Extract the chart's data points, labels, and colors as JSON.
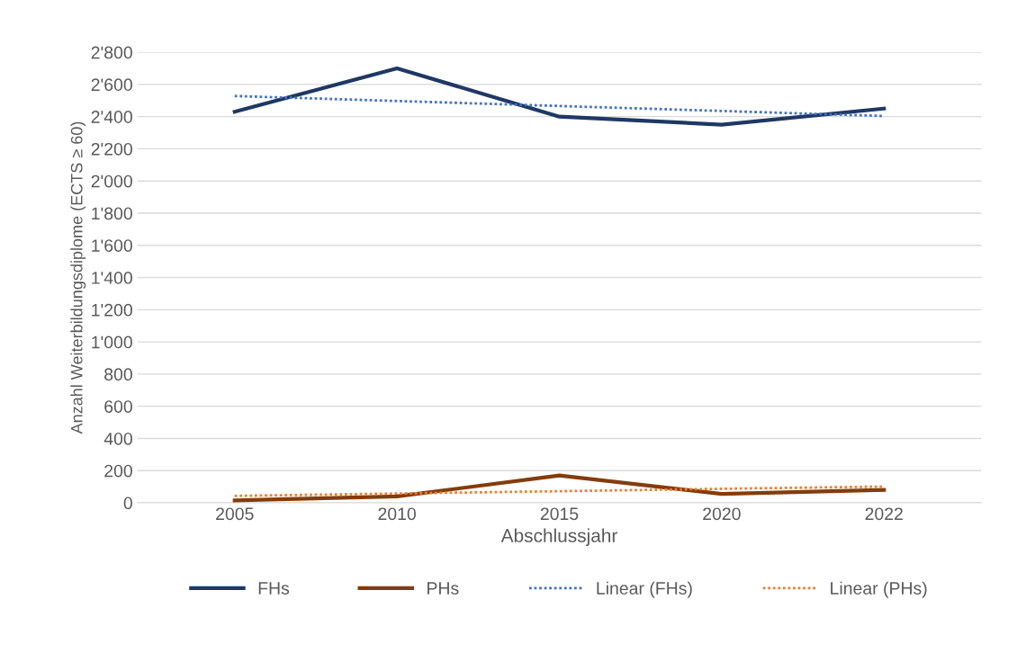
{
  "chart_data": {
    "type": "line",
    "xlabel": "Abschlussjahr",
    "ylabel": "Anzahl Weiterbildungsdiplome (ECTS ≥ 60)",
    "categories": [
      "2005",
      "2010",
      "2015",
      "2020",
      "2022"
    ],
    "series": [
      {
        "name": "FHs",
        "color": "#1f3864",
        "values": [
          2430,
          2700,
          2400,
          2350,
          2450
        ],
        "line_style": "solid"
      },
      {
        "name": "PHs",
        "color": "#843c0c",
        "values": [
          15,
          40,
          170,
          55,
          80
        ],
        "line_style": "solid"
      },
      {
        "name": "Linear (FHs)",
        "color": "#4472c4",
        "values": [
          2528,
          2497,
          2466,
          2435,
          2404
        ],
        "line_style": "dotted"
      },
      {
        "name": "Linear (PHs)",
        "color": "#ed7d31",
        "values": [
          43,
          58,
          72,
          87,
          101
        ],
        "line_style": "dotted"
      }
    ],
    "ylim": [
      0,
      2800
    ],
    "yticks": [
      0,
      200,
      400,
      600,
      800,
      {
        "value": 1000,
        "label": "1'000"
      },
      {
        "value": 1200,
        "label": "1'200"
      },
      {
        "value": 1400,
        "label": "1'400"
      },
      {
        "value": 1600,
        "label": "1'600"
      },
      {
        "value": 1800,
        "label": "1'800"
      },
      {
        "value": 2000,
        "label": "2'000"
      },
      {
        "value": 2200,
        "label": "2'200"
      },
      {
        "value": 2400,
        "label": "2'400"
      },
      {
        "value": 2600,
        "label": "2'600"
      },
      {
        "value": 2800,
        "label": "2'800"
      }
    ],
    "grid": "y",
    "legend": "bottom",
    "marker": "none"
  }
}
